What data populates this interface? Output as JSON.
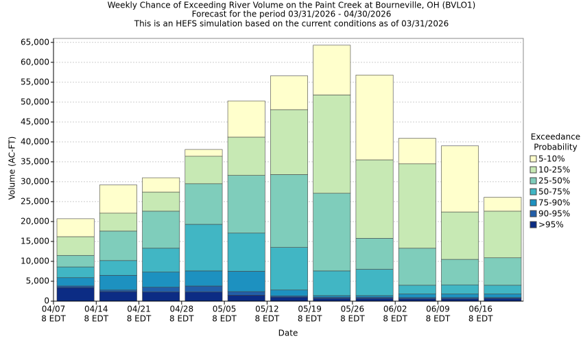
{
  "chart_data": {
    "type": "stacked_bar",
    "title": [
      "Weekly Chance of Exceeding River Volume on the Paint Creek at Bourneville, OH (BVLO1)",
      "Forecast for the period 03/31/2026 - 04/30/2026",
      "This is an HEFS simulation based on the current conditions as of 03/31/2026"
    ],
    "x_label": "Date",
    "y_label": "Volume (AC-FT)",
    "legend_title": [
      "Exceedance",
      "Probability"
    ],
    "categories": [
      [
        "04/07",
        "8 EDT"
      ],
      [
        "04/14",
        "8 EDT"
      ],
      [
        "04/21",
        "8 EDT"
      ],
      [
        "04/28",
        "8 EDT"
      ],
      [
        "05/05",
        "8 EDT"
      ],
      [
        "05/12",
        "8 EDT"
      ],
      [
        "05/19",
        "8 EDT"
      ],
      [
        "05/26",
        "8 EDT"
      ],
      [
        "06/02",
        "8 EDT"
      ],
      [
        "06/09",
        "8 EDT"
      ],
      [
        "06/16",
        "8 EDT"
      ]
    ],
    "series": [
      {
        "name": "5-10%",
        "color": "#ffffcc",
        "values": [
          4500,
          7100,
          3600,
          1700,
          9100,
          8500,
          12500,
          21300,
          6400,
          16600,
          3500
        ]
      },
      {
        "name": "10-25%",
        "color": "#c7e9b4",
        "values": [
          4700,
          4500,
          4800,
          6900,
          9600,
          16300,
          24700,
          19700,
          21200,
          11900,
          11700
        ]
      },
      {
        "name": "25-50%",
        "color": "#7fcdbb",
        "values": [
          2900,
          7400,
          9300,
          10200,
          14500,
          18300,
          19500,
          7800,
          9300,
          6400,
          6900
        ]
      },
      {
        "name": "50-75%",
        "color": "#41b6c4",
        "values": [
          2700,
          3700,
          6000,
          11700,
          9600,
          10700,
          6200,
          6600,
          2200,
          2300,
          2200
        ]
      },
      {
        "name": "75-90%",
        "color": "#1d91c0",
        "values": [
          2100,
          3700,
          3800,
          3800,
          5100,
          1500,
          400,
          400,
          900,
          900,
          900
        ]
      },
      {
        "name": "90-95%",
        "color": "#225ea8",
        "values": [
          400,
          400,
          1200,
          1500,
          900,
          300,
          300,
          300,
          300,
          300,
          200
        ]
      },
      {
        "name": ">95%",
        "color": "#0c2c84",
        "values": [
          3400,
          2400,
          2300,
          2300,
          1500,
          1000,
          700,
          700,
          600,
          600,
          700
        ]
      }
    ],
    "ylim": [
      0,
      66000
    ],
    "yticks": [
      0,
      {
        "value": 5000,
        "label": "5,000"
      },
      {
        "value": 10000,
        "label": "10,000"
      },
      {
        "value": 15000,
        "label": "15,000"
      },
      {
        "value": 20000,
        "label": "20,000"
      },
      {
        "value": 25000,
        "label": "25,000"
      },
      {
        "value": 30000,
        "label": "30,000"
      },
      {
        "value": 35000,
        "label": "35,000"
      },
      {
        "value": 40000,
        "label": "40,000"
      },
      {
        "value": 45000,
        "label": "45,000"
      },
      {
        "value": 50000,
        "label": "50,000"
      },
      {
        "value": 55000,
        "label": "55,000"
      },
      {
        "value": 60000,
        "label": "60,000"
      },
      {
        "value": 65000,
        "label": "65,000"
      }
    ],
    "grid": true
  }
}
